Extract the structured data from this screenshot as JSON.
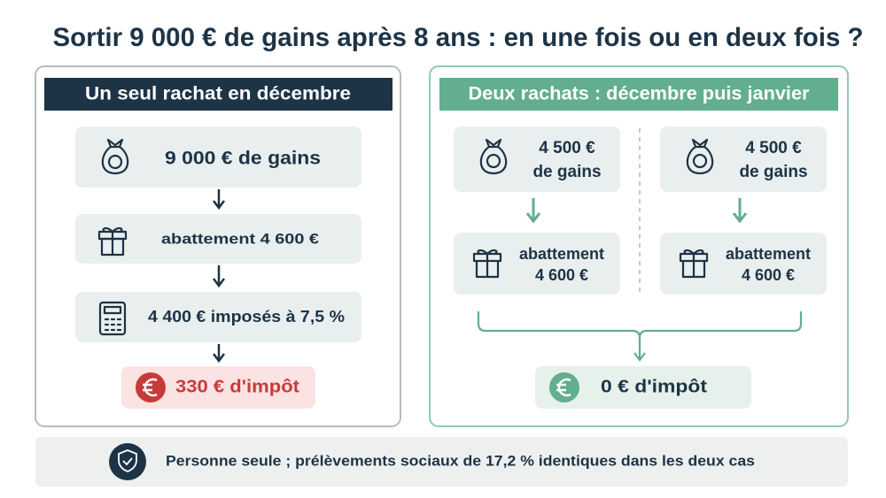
{
  "title": "Sortir 9 000 € de gains après 8 ans : en une fois ou en deux fois ?",
  "left": {
    "header": "Un seul rachat en décembre",
    "steps": [
      "9 000 € de gains",
      "abattement 4 600 €",
      "4 400 € imposés à 7,5 %"
    ],
    "result": "330 € d'impôt"
  },
  "right": {
    "header": "Deux rachats : décembre puis janvier",
    "columns": [
      {
        "gains": [
          "4 500 €",
          "de gains"
        ],
        "abattement": [
          "abattement",
          "4 600 €"
        ]
      },
      {
        "gains": [
          "4 500 €",
          "de gains"
        ],
        "abattement": [
          "abattement",
          "4 600 €"
        ]
      }
    ],
    "result": "0 € d'impôt"
  },
  "footer": "Personne seule ; prélèvements sociaux de 17,2 % identiques dans les deux cas"
}
